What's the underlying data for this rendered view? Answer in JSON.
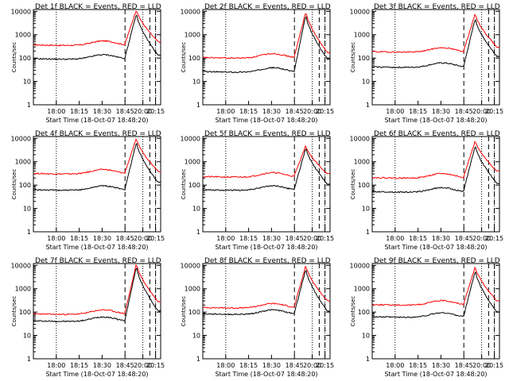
{
  "chart_data": {
    "type": "line",
    "layout": "3x3 grid",
    "xlabel": "Start Time (18-Oct-07 18:48:20)",
    "ylabel": "Counts/sec",
    "x_tick_labels": [
      "18:00",
      "18:15",
      "18:30",
      "18:45",
      "20:00",
      "20:15"
    ],
    "y_scale": "log",
    "ylim": [
      1,
      12000
    ],
    "y_tick_labels": [
      "1",
      "10",
      "100",
      "1000",
      "10000"
    ],
    "series_colors": {
      "events": "#000000",
      "lld": "#ff0000"
    },
    "vertical_markers": {
      "dotted_at_tick": [
        0,
        4,
        5
      ],
      "dashed_at_tick": [
        3,
        4.55,
        5.6
      ]
    },
    "panels": [
      {
        "title": "Det 1f BLACK = Events, RED = LLD",
        "red_base": 350,
        "red_peak": 12000,
        "red_end": 500,
        "black_base": 90,
        "black_peak": 8000,
        "black_end": 130
      },
      {
        "title": "Det 2f BLACK = Events, RED = LLD",
        "red_base": 100,
        "red_peak": 10000,
        "red_end": 170,
        "black_base": 25,
        "black_peak": 7000,
        "black_end": 90
      },
      {
        "title": "Det 3f BLACK = Events, RED = LLD",
        "red_base": 180,
        "red_peak": 8000,
        "red_end": 300,
        "black_base": 40,
        "black_peak": 5000,
        "black_end": 120
      },
      {
        "title": "Det 4f BLACK = Events, RED = LLD",
        "red_base": 300,
        "red_peak": 10000,
        "red_end": 400,
        "black_base": 60,
        "black_peak": 7000,
        "black_end": 130
      },
      {
        "title": "Det 5f BLACK = Events, RED = LLD",
        "red_base": 220,
        "red_peak": 5000,
        "red_end": 300,
        "black_base": 60,
        "black_peak": 4000,
        "black_end": 110
      },
      {
        "title": "Det 6f BLACK = Events, RED = LLD",
        "red_base": 200,
        "red_peak": 8000,
        "red_end": 400,
        "black_base": 50,
        "black_peak": 5000,
        "black_end": 120
      },
      {
        "title": "Det 7f BLACK = Events, RED = LLD",
        "red_base": 80,
        "red_peak": 12000,
        "red_end": 280,
        "black_base": 40,
        "black_peak": 9000,
        "black_end": 110
      },
      {
        "title": "Det 8f BLACK = Events, RED = LLD",
        "red_base": 150,
        "red_peak": 10000,
        "red_end": 300,
        "black_base": 80,
        "black_peak": 7000,
        "black_end": 110
      },
      {
        "title": "Det 9f BLACK = Events, RED = LLD",
        "red_base": 200,
        "red_peak": 9000,
        "red_end": 300,
        "black_base": 60,
        "black_peak": 6000,
        "black_end": 100
      }
    ]
  }
}
